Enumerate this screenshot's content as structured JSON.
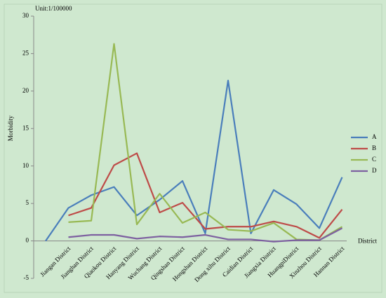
{
  "chart_data": {
    "type": "line",
    "axis_note": "Unit:1/100000",
    "ylabel": "Morbidity",
    "xlabel": "District",
    "categories": [
      null,
      "Jiangan District",
      "Jianghan District",
      "Qiaokou District",
      "Hanyang District",
      "Wuchang District",
      "Qingshan District",
      "Hongshan District",
      "Dong xihu District",
      "Caidian District",
      "Jiangxia District",
      "HuangpiDistrict",
      "Xinzhou District",
      "Hannan District"
    ],
    "series": [
      {
        "name": "A",
        "color": "#4a7ebb",
        "values": [
          0,
          4.4,
          6.1,
          7.2,
          3.4,
          5.5,
          8.0,
          1.0,
          21.4,
          1.0,
          6.8,
          4.9,
          1.7,
          8.5
        ]
      },
      {
        "name": "B",
        "color": "#be4b48",
        "values": [
          null,
          3.4,
          4.4,
          10.1,
          11.7,
          3.8,
          5.1,
          1.6,
          1.9,
          1.9,
          2.6,
          1.9,
          0.4,
          4.2
        ]
      },
      {
        "name": "C",
        "color": "#98b954",
        "values": [
          null,
          2.5,
          2.7,
          26.3,
          2.2,
          6.3,
          2.4,
          3.8,
          1.5,
          1.3,
          2.4,
          0.2,
          0.1,
          1.9
        ]
      },
      {
        "name": "D",
        "color": "#7d60a0",
        "values": [
          null,
          0.5,
          0.8,
          0.8,
          0.3,
          0.6,
          0.5,
          0.8,
          0.2,
          0.2,
          -0.1,
          0.1,
          0.1,
          1.7
        ]
      }
    ],
    "ylim": [
      -5,
      30
    ],
    "yticks": [
      -5,
      0,
      5,
      10,
      15,
      20,
      25,
      30
    ],
    "grid": false,
    "legend": "right"
  }
}
